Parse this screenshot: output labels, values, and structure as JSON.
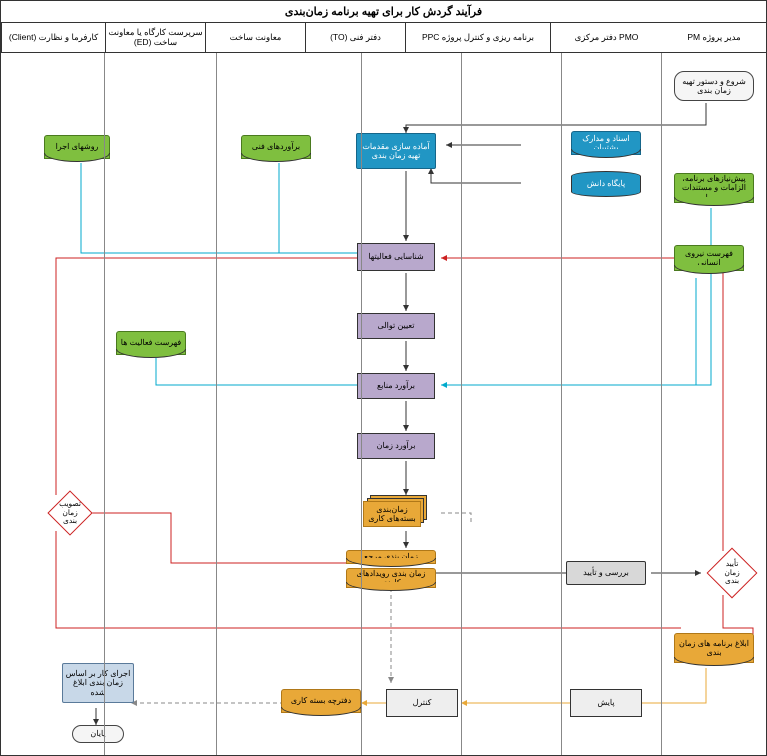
{
  "title": "فرآیند گردش کار برای تهیه برنامه زمان‌بندی",
  "lanes": [
    {
      "label": "کارفرما و نظارت (Client)",
      "w": 104
    },
    {
      "label": "سرپرست کارگاه یا معاونت ساخت (ED)",
      "w": 100
    },
    {
      "label": "معاونت ساخت",
      "w": 100
    },
    {
      "label": "دفتر فنی (TO)",
      "w": 100
    },
    {
      "label": "برنامه ریزی و کنترل پروژه PPC",
      "w": 145
    },
    {
      "label": "PMO دفتر مرکزی",
      "w": 112
    },
    {
      "label": "مدیر پروژه PM",
      "w": 104
    }
  ],
  "colors": {
    "green": "#7fbf3f",
    "green_border": "#4a7a1f",
    "blue": "#2196c4",
    "blue_border": "#15668a",
    "purple": "#b8a8cc",
    "purple_border": "#6a5a8a",
    "orange": "#e8a838",
    "orange_border": "#b07818",
    "red_border": "#cc2020",
    "gray": "#d8d8d8",
    "arrow_black": "#333",
    "arrow_cyan": "#00aacc",
    "arrow_red": "#cc2020",
    "arrow_orange": "#e8a838",
    "arrow_dash": "#888"
  },
  "nodes": {
    "start": {
      "label": "شروع و دستور تهیه زمان بندی"
    },
    "pish": {
      "label": "پیش‌نیازهای برنامه، الزامات و مستندات مربوطه"
    },
    "fehrest_n": {
      "label": "فهرست نیروی انسانی"
    },
    "asnad": {
      "label": "اسناد و مدارک پشتیبان"
    },
    "paygah": {
      "label": "پایگاه دانش"
    },
    "amade": {
      "label": "آماده سازی مقدمات تهیه زمان بندی"
    },
    "baravord_f": {
      "label": "برآوردهای فنی"
    },
    "ravesh": {
      "label": "روشهای اجرا"
    },
    "shenasayi": {
      "label": "شناسایی فعالیتها"
    },
    "tayin": {
      "label": "تعیین توالی"
    },
    "baravord_m": {
      "label": "برآورد منابع"
    },
    "baravord_z": {
      "label": "برآورد زمان"
    },
    "fehrest_f": {
      "label": "فهرست فعالیت ها"
    },
    "zaman_baste": {
      "label": "زمان‌بندی بسته‌های کاری"
    },
    "marja1": {
      "label": "زمان بندی مرجع"
    },
    "marja2": {
      "label": "زمان بندی رویدادهای کلیدی"
    },
    "barresi": {
      "label": "بررسی و تأیید"
    },
    "tayid": {
      "label": "تأیید زمان بندی"
    },
    "tasvib": {
      "label": "تصویب زمان بندی"
    },
    "eblagh": {
      "label": "ابلاغ برنامه های زمان بندی"
    },
    "payesh": {
      "label": "پایش"
    },
    "control": {
      "label": "کنترل"
    },
    "daftarche": {
      "label": "دفترچه بسته کاری"
    },
    "ejra": {
      "label": "اجرای کار بر اساس زمان بندی ابلاغ شده"
    },
    "payan": {
      "label": "پایان"
    }
  }
}
